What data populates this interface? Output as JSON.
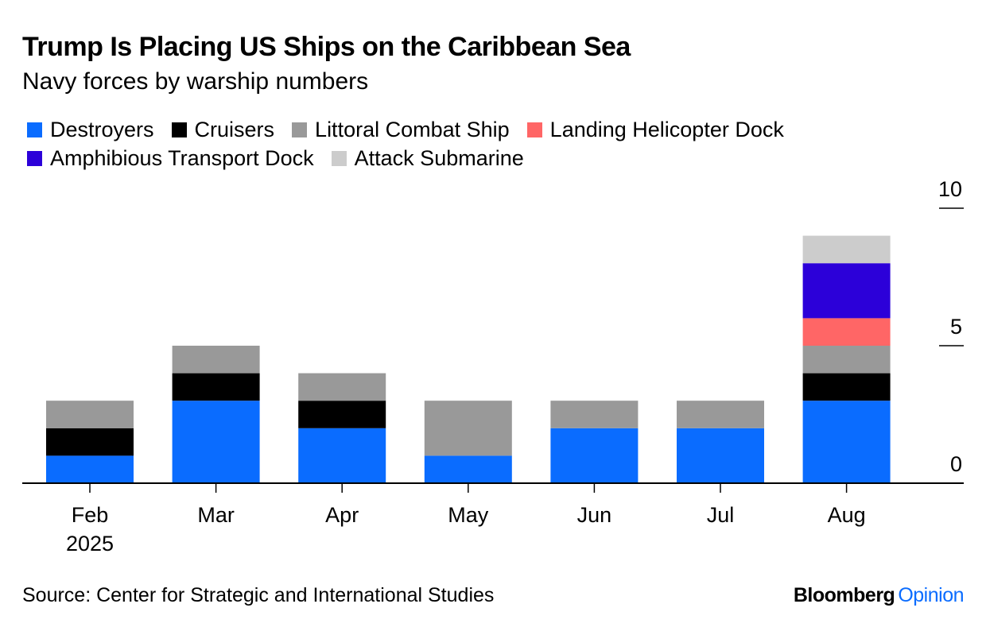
{
  "chart_data": {
    "type": "bar",
    "stacked": true,
    "title": "Trump Is Placing US Ships on the Caribbean Sea",
    "subtitle": "Navy forces by warship numbers",
    "categories": [
      "Feb",
      "Mar",
      "Apr",
      "May",
      "Jun",
      "Jul",
      "Aug"
    ],
    "category_sublabels": [
      "2025",
      "",
      "",
      "",
      "",
      "",
      ""
    ],
    "series": [
      {
        "name": "Destroyers",
        "color": "#0a6cff",
        "values": [
          1,
          3,
          2,
          1,
          2,
          2,
          3
        ]
      },
      {
        "name": "Cruisers",
        "color": "#000000",
        "values": [
          1,
          1,
          1,
          0,
          0,
          0,
          1
        ]
      },
      {
        "name": "Littoral Combat Ship",
        "color": "#999999",
        "values": [
          1,
          1,
          1,
          2,
          1,
          1,
          1
        ]
      },
      {
        "name": "Landing Helicopter Dock",
        "color": "#ff6666",
        "values": [
          0,
          0,
          0,
          0,
          0,
          0,
          1
        ]
      },
      {
        "name": "Amphibious Transport Dock",
        "color": "#2c00d9",
        "values": [
          0,
          0,
          0,
          0,
          0,
          0,
          2
        ]
      },
      {
        "name": "Attack Submarine",
        "color": "#cccccc",
        "values": [
          0,
          0,
          0,
          0,
          0,
          0,
          1
        ]
      }
    ],
    "yticks": [
      "0",
      "5",
      "10"
    ],
    "ylim": [
      0,
      10
    ],
    "xlabel": "",
    "ylabel": "",
    "y_axis_position": "right",
    "legend_position": "top",
    "grid": false
  },
  "source": "Source: Center for Strategic and International Studies",
  "brand": {
    "name": "Bloomberg",
    "section": "Opinion",
    "section_color": "#0a6cff"
  }
}
